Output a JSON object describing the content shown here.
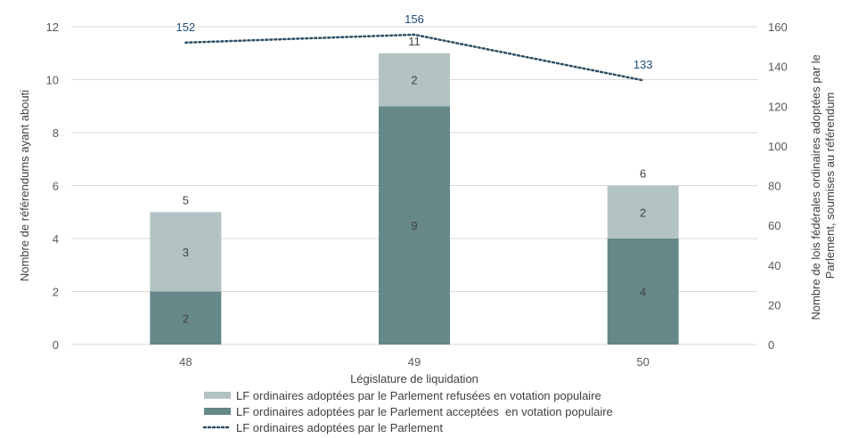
{
  "chart_data": {
    "type": "bar",
    "stacked": true,
    "categories": [
      "48",
      "49",
      "50"
    ],
    "xlabel": "Législature de liquidation",
    "ylabel": "Nombre de référendums ayant abouti",
    "ylabel_right": [
      "Nombre de lois fédérales ordinaires adoptées par le",
      "Parlement, soumises au référendum"
    ],
    "ylim": [
      0,
      12
    ],
    "y_ticks": [
      0,
      2,
      4,
      6,
      8,
      10,
      12
    ],
    "ylim_right": [
      0,
      160
    ],
    "y_ticks_right": [
      0,
      20,
      40,
      60,
      80,
      100,
      120,
      140,
      160
    ],
    "grid": true,
    "legend_position": "bottom",
    "series": [
      {
        "name": "LF ordinaires adoptées par le Parlement acceptées  en votation populaire",
        "values": [
          2,
          9,
          4
        ],
        "color": "#668888",
        "axis": "left"
      },
      {
        "name": "LF ordinaires adoptées par le Parlement refusées en votation populaire",
        "values": [
          3,
          2,
          2
        ],
        "color": "#b3c3c4",
        "axis": "left"
      }
    ],
    "totals": [
      5,
      11,
      6
    ],
    "line_series": {
      "name": "LF ordinaires adoptées par le Parlement",
      "values": [
        152,
        156,
        133
      ],
      "color": "#2e4e64",
      "axis": "right",
      "style": "dotted"
    },
    "legend_order": [
      1,
      0,
      "line"
    ]
  }
}
